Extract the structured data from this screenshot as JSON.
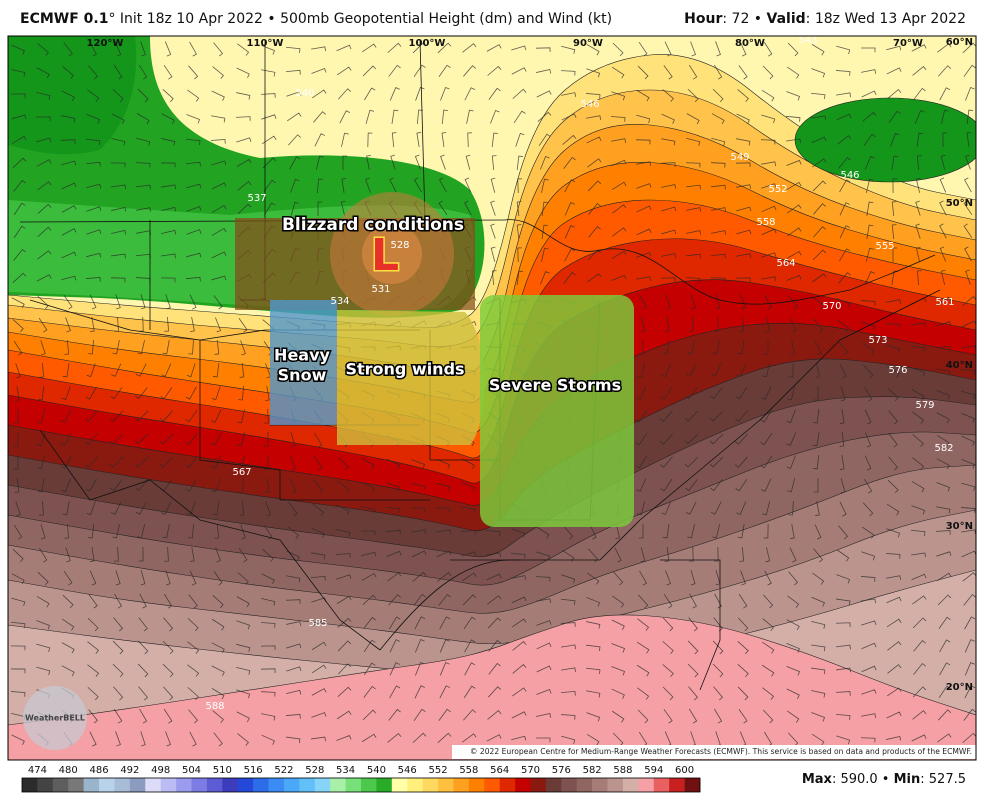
{
  "header": {
    "model": "ECMWF 0.1",
    "degree": "°",
    "init": "Init 18z 10 Apr 2022 • 500mb Geopotential Height (dm) and Wind (kt)",
    "hour_label": "Hour",
    "hour": ": 72 •",
    "valid_label": "Valid",
    "valid": ": 18z Wed 13 Apr 2022"
  },
  "map": {
    "longitudes": [
      "120°W",
      "110°W",
      "100°W",
      "90°W",
      "80°W",
      "70°W"
    ],
    "latitudes": [
      "60°N",
      "50°N",
      "40°N",
      "30°N",
      "20°N"
    ],
    "contour_labels": [
      528,
      531,
      534,
      537,
      540,
      543,
      546,
      546,
      549,
      552,
      555,
      558,
      561,
      564,
      567,
      570,
      573,
      576,
      579,
      582,
      585,
      588
    ],
    "annotations": {
      "blizzard": "Blizzard conditions",
      "low": "L",
      "heavy_snow": [
        "Heavy",
        "Snow"
      ],
      "strong_winds": "Strong winds",
      "severe_storms": "Severe Storms"
    },
    "logo": "WeatherBELL",
    "copyright": "© 2022 European Centre for Medium-Range Weather Forecasts (ECMWF). This service is based on data and products of the ECMWF."
  },
  "colorbar": {
    "labels": [
      474,
      480,
      486,
      492,
      498,
      504,
      510,
      516,
      522,
      528,
      534,
      540,
      546,
      552,
      558,
      564,
      570,
      576,
      582,
      588,
      594,
      600
    ],
    "colors": [
      "#2b2b2b",
      "#444444",
      "#5e5e5e",
      "#787878",
      "#9ab4cc",
      "#b8d2ea",
      "#a8bcd8",
      "#8c9cc0",
      "#dcdcf8",
      "#bcbcf4",
      "#9c9cee",
      "#7c7ce4",
      "#5c5cd4",
      "#3c3cbc",
      "#2448d8",
      "#2c6ce8",
      "#3a8cf4",
      "#4aa8f8",
      "#62c0f8",
      "#86d4f8",
      "#a8f0a8",
      "#78e078",
      "#4cc84c",
      "#28ac28",
      "#ffffa8",
      "#fff07c",
      "#ffd860",
      "#ffc040",
      "#ffa020",
      "#ff8000",
      "#ff5a00",
      "#e02800",
      "#c40000",
      "#8a1a10",
      "#6a3c38",
      "#7d5250",
      "#906662",
      "#a67c76",
      "#bc948e",
      "#d3afa8",
      "#f4a0a4",
      "#e86060",
      "#c82020",
      "#701010"
    ]
  },
  "stats": {
    "max_label": "Max",
    "max": ": 590.0 •",
    "min_label": "Min",
    "min": ": 527.5"
  }
}
